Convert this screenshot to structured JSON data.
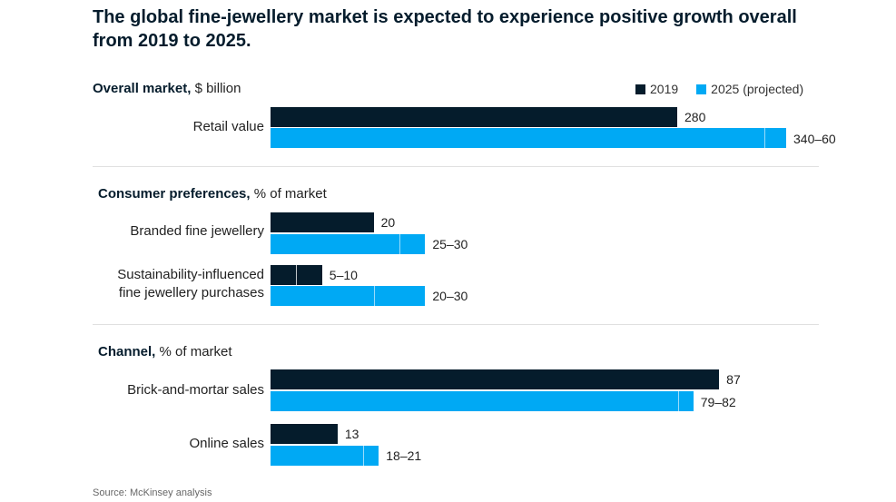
{
  "title": "The global fine-jewellery market is expected to experience positive growth overall from 2019 to 2025.",
  "source": "Source: McKinsey analysis",
  "legend": [
    {
      "label": "2019",
      "color": "#051c2c"
    },
    {
      "label": "2025 (projected)",
      "color": "#00a9f4"
    }
  ],
  "colors": {
    "y2019": "#051c2c",
    "y2025": "#00a9f4"
  },
  "chart_data": [
    {
      "type": "bar",
      "orientation": "horizontal",
      "section_title": "Overall market,",
      "section_unit": "$ billion",
      "categories": [
        "Retail value"
      ],
      "xlim": [
        0,
        355
      ],
      "series": [
        {
          "name": "2019",
          "values": [
            [
              280,
              280
            ]
          ],
          "labels": [
            "280"
          ]
        },
        {
          "name": "2025 (projected)",
          "values": [
            [
              340,
              360
            ]
          ],
          "labels": [
            "340–60"
          ]
        }
      ]
    },
    {
      "type": "bar",
      "orientation": "horizontal",
      "section_title": "Consumer preferences,",
      "section_unit": "% of market",
      "categories": [
        "Branded fine jewellery",
        "Sustainability-influenced\nfine jewellery purchases"
      ],
      "xlim": [
        0,
        100
      ],
      "series": [
        {
          "name": "2019",
          "values": [
            [
              20,
              20
            ],
            [
              5,
              10
            ]
          ],
          "labels": [
            "20",
            "5–10"
          ]
        },
        {
          "name": "2025 (projected)",
          "values": [
            [
              25,
              30
            ],
            [
              20,
              30
            ]
          ],
          "labels": [
            "25–30",
            "20–30"
          ]
        }
      ]
    },
    {
      "type": "bar",
      "orientation": "horizontal",
      "section_title": "Channel,",
      "section_unit": "% of market",
      "categories": [
        "Brick-and-mortar sales",
        "Online sales"
      ],
      "xlim": [
        0,
        100
      ],
      "series": [
        {
          "name": "2019",
          "values": [
            [
              87,
              87
            ],
            [
              13,
              13
            ]
          ],
          "labels": [
            "87",
            "13"
          ]
        },
        {
          "name": "2025 (projected)",
          "values": [
            [
              79,
              82
            ],
            [
              18,
              21
            ]
          ],
          "labels": [
            "79–82",
            "18–21"
          ]
        }
      ]
    }
  ]
}
